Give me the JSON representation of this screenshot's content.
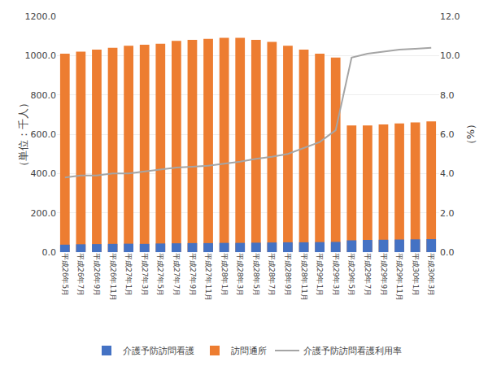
{
  "chart_data": {
    "type": "bar",
    "categories": [
      "平成26年5月",
      "平成26年7月",
      "平成26年9月",
      "平成26年11月",
      "平成27年1月",
      "平成27年3月",
      "平成27年5月",
      "平成27年7月",
      "平成27年9月",
      "平成27年11月",
      "平成28年1月",
      "平成28年3月",
      "平成28年5月",
      "平成28年7月",
      "平成28年9月",
      "平成28年11月",
      "平成29年1月",
      "平成29年3月",
      "平成29年5月",
      "平成29年7月",
      "平成29年9月",
      "平成29年11月",
      "平成30年1月",
      "平成30年3月"
    ],
    "series": [
      {
        "name": "介護予防訪問看護",
        "type": "bar",
        "color": "#4472C4",
        "values": [
          38,
          40,
          41,
          42,
          43,
          42,
          44,
          45,
          46,
          46,
          47,
          47,
          48,
          49,
          50,
          50,
          51,
          52,
          60,
          62,
          63,
          64,
          65,
          66
        ]
      },
      {
        "name": "訪問通所",
        "type": "bar",
        "color": "#ED7D31",
        "values": [
          1010,
          1020,
          1030,
          1040,
          1050,
          1055,
          1060,
          1075,
          1080,
          1085,
          1090,
          1090,
          1080,
          1070,
          1050,
          1030,
          1010,
          990,
          645,
          645,
          650,
          655,
          660,
          665
        ]
      },
      {
        "name": "介護予防訪問看護利用率",
        "type": "line",
        "axis": "y2",
        "color": "#A5A5A5",
        "values": [
          3.8,
          3.9,
          3.9,
          4.0,
          4.0,
          4.1,
          4.2,
          4.3,
          4.35,
          4.4,
          4.5,
          4.6,
          4.75,
          4.85,
          5.0,
          5.3,
          5.6,
          6.2,
          9.9,
          10.1,
          10.2,
          10.3,
          10.35,
          10.4
        ]
      }
    ],
    "stacked": false,
    "ylabel": "（単位：千人）",
    "y2label": "（%）",
    "ylim": [
      0,
      1200
    ],
    "yticks": [
      {
        "value": 0,
        "label": "0.0"
      },
      {
        "value": 200,
        "label": "200.0"
      },
      {
        "value": 400,
        "label": "400.0"
      },
      {
        "value": 600,
        "label": "600.0"
      },
      {
        "value": 800,
        "label": "800.0"
      },
      {
        "value": 1000,
        "label": "1000.0"
      },
      {
        "value": 1200,
        "label": "1200.0"
      }
    ],
    "y2lim": [
      0,
      12
    ],
    "y2ticks": [
      {
        "value": 0,
        "label": "0.0"
      },
      {
        "value": 2,
        "label": "2.0"
      },
      {
        "value": 4,
        "label": "4.0"
      },
      {
        "value": 6,
        "label": "6.0"
      },
      {
        "value": 8,
        "label": "8.0"
      },
      {
        "value": 10,
        "label": "10.0"
      },
      {
        "value": 12,
        "label": "12.0"
      }
    ],
    "grid": true,
    "legend": "bottom"
  }
}
